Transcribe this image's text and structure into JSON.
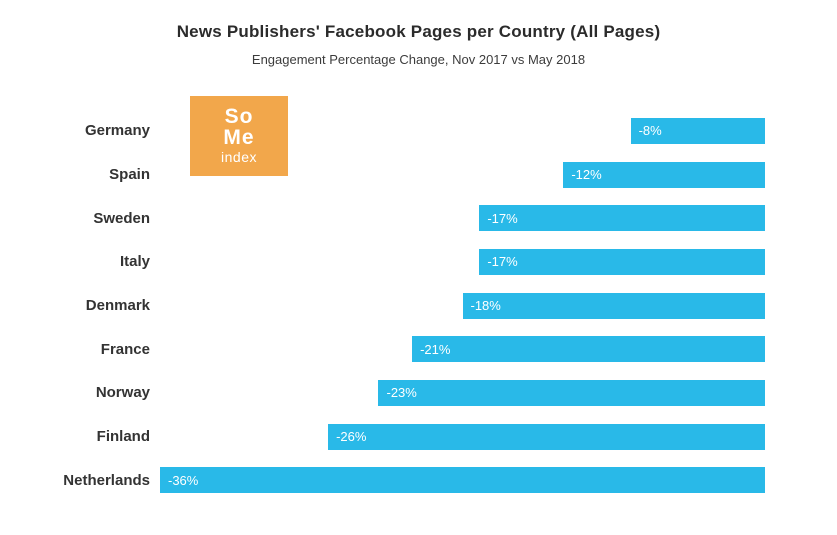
{
  "chart_data": {
    "type": "bar",
    "orientation": "horizontal",
    "title": "News Publishers' Facebook Pages per Country (All Pages)",
    "subtitle": "Engagement Percentage Change, Nov 2017 vs May 2018",
    "categories": [
      "Germany",
      "Spain",
      "Sweden",
      "Italy",
      "Denmark",
      "France",
      "Norway",
      "Finland",
      "Netherlands"
    ],
    "values": [
      -8,
      -12,
      -17,
      -17,
      -18,
      -21,
      -23,
      -26,
      -36
    ],
    "value_labels": [
      "-8%",
      "-12%",
      "-17%",
      "-17%",
      "-18%",
      "-21%",
      "-23%",
      "-26%",
      "-36%"
    ],
    "xlim": [
      -36,
      0
    ],
    "bar_color": "#29b9e8",
    "value_label_color": "#ffffff",
    "category_label_color": "#333333",
    "grid": false,
    "legend": false
  },
  "logo": {
    "line1": "So",
    "line2": "Me",
    "line3": "index",
    "background_color": "#f2a74b",
    "text_color": "#ffffff"
  }
}
